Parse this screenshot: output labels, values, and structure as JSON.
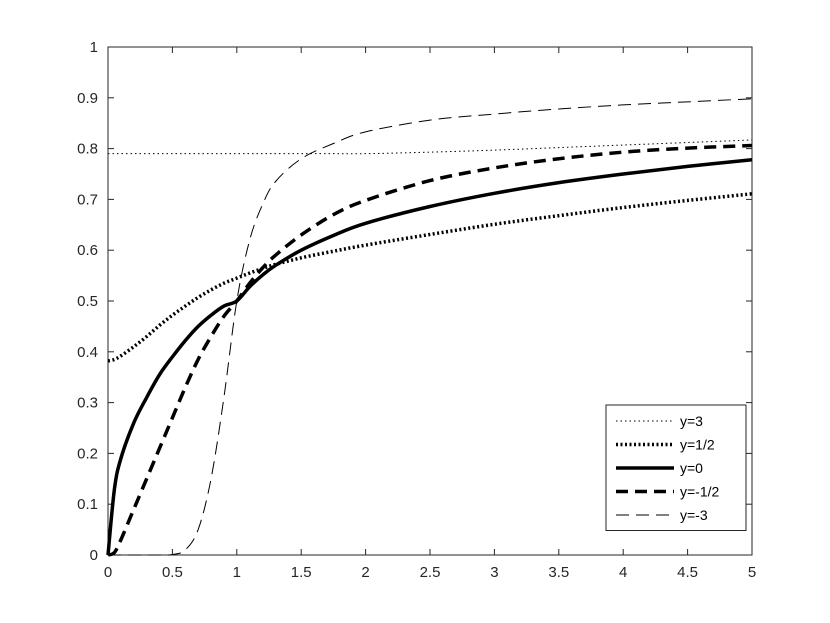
{
  "chart_data": {
    "type": "line",
    "title": "",
    "xlabel": "",
    "ylabel": "",
    "xlim": [
      0,
      5
    ],
    "ylim": [
      0,
      1
    ],
    "x_ticks": [
      "0",
      "0.5",
      "1",
      "1.5",
      "2",
      "2.5",
      "3",
      "3.5",
      "4",
      "4.5",
      "5"
    ],
    "y_ticks": [
      "0",
      "0.1",
      "0.2",
      "0.3",
      "0.4",
      "0.5",
      "0.6",
      "0.7",
      "0.8",
      "0.9",
      "1"
    ],
    "grid": false,
    "legend_position": "bottom-right",
    "x": [
      0,
      0.05,
      0.1,
      0.2,
      0.3,
      0.4,
      0.5,
      0.6,
      0.7,
      0.8,
      0.9,
      1,
      1.1,
      1.2,
      1.3,
      1.5,
      1.75,
      2,
      2.5,
      3,
      3.5,
      4,
      4.5,
      5
    ],
    "series": [
      {
        "name": "y=3",
        "style": "dotted-thin",
        "values": [
          0.79,
          0.79,
          0.79,
          0.79,
          0.79,
          0.79,
          0.79,
          0.79,
          0.79,
          0.79,
          0.79,
          0.79,
          0.79,
          0.79,
          0.79,
          0.79,
          0.79,
          0.79,
          0.793,
          0.797,
          0.802,
          0.807,
          0.812,
          0.817
        ]
      },
      {
        "name": "y=1/2",
        "style": "dotted-thick",
        "values": [
          0.382,
          0.385,
          0.392,
          0.41,
          0.43,
          0.452,
          0.472,
          0.49,
          0.507,
          0.522,
          0.535,
          0.545,
          0.555,
          0.564,
          0.572,
          0.585,
          0.598,
          0.61,
          0.631,
          0.651,
          0.668,
          0.684,
          0.698,
          0.711
        ]
      },
      {
        "name": "y=0",
        "style": "solid-thick",
        "values": [
          0,
          0.13,
          0.19,
          0.26,
          0.31,
          0.355,
          0.39,
          0.422,
          0.45,
          0.472,
          0.49,
          0.5,
          0.528,
          0.551,
          0.57,
          0.6,
          0.629,
          0.653,
          0.686,
          0.712,
          0.733,
          0.75,
          0.765,
          0.778
        ]
      },
      {
        "name": "y=-1/2",
        "style": "dashed-thick",
        "values": [
          0,
          0.005,
          0.03,
          0.09,
          0.15,
          0.21,
          0.27,
          0.33,
          0.385,
          0.43,
          0.47,
          0.5,
          0.535,
          0.565,
          0.59,
          0.63,
          0.67,
          0.698,
          0.737,
          0.762,
          0.78,
          0.793,
          0.801,
          0.806
        ]
      },
      {
        "name": "y=-3",
        "style": "dashed-thin",
        "values": [
          0,
          0,
          0,
          0,
          0,
          0,
          0.001,
          0.01,
          0.05,
          0.15,
          0.31,
          0.5,
          0.62,
          0.69,
          0.735,
          0.78,
          0.81,
          0.833,
          0.856,
          0.868,
          0.878,
          0.886,
          0.892,
          0.898
        ]
      }
    ]
  }
}
